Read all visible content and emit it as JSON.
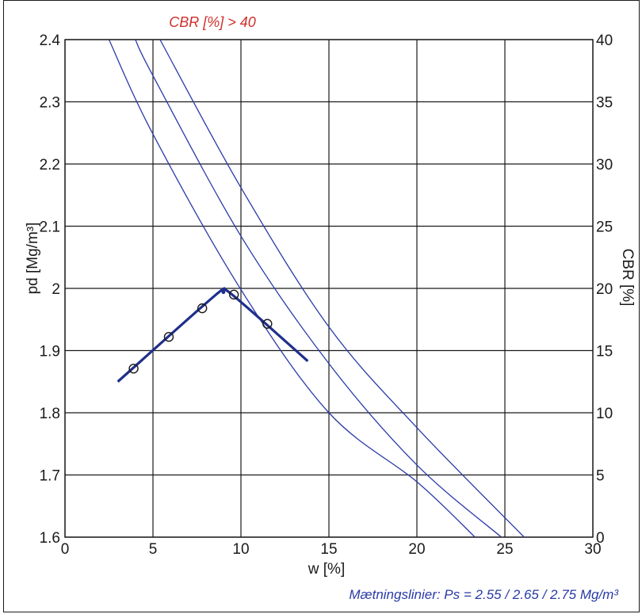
{
  "chart_data": {
    "type": "line",
    "xlabel": "w [%]",
    "ylabel": "pd [Mg/m³]",
    "y2label": "CBR [%]",
    "xlim": [
      0,
      30
    ],
    "ylim": [
      1.6,
      2.4
    ],
    "y2lim": [
      0,
      40
    ],
    "x_ticks": [
      "0",
      "5",
      "10",
      "15",
      "20",
      "25",
      "30"
    ],
    "y_ticks": [
      "1.6",
      "1.7",
      "1.8",
      "1.9",
      "2",
      "2.1",
      "2.2",
      "2.3",
      "2.4"
    ],
    "y2_ticks": [
      "0",
      "5",
      "10",
      "15",
      "20",
      "25",
      "30",
      "35",
      "40"
    ],
    "grid": true,
    "annotations": {
      "cbr_note": "CBR [%] > 40",
      "saturation_note": "Mætningslinier: Ps = 2.55 / 2.65 / 2.75 Mg/m³"
    },
    "measured_points": [
      {
        "x": 3.9,
        "y": 1.871
      },
      {
        "x": 5.9,
        "y": 1.922
      },
      {
        "x": 7.8,
        "y": 1.968
      },
      {
        "x": 9.6,
        "y": 1.99
      },
      {
        "x": 11.5,
        "y": 1.943
      }
    ],
    "fit_curve": {
      "x": [
        3.0,
        8.5,
        9.0,
        9.5,
        13.8
      ],
      "y": [
        1.85,
        1.988,
        1.993,
        1.99,
        1.883
      ]
    },
    "saturation_lines": [
      {
        "ps": 2.55,
        "x": [
          2.5,
          5,
          10,
          15,
          20,
          23.3
        ],
        "y": [
          2.4,
          2.248,
          1.998,
          1.8,
          1.689,
          1.6
        ]
      },
      {
        "ps": 2.65,
        "x": [
          4.0,
          5,
          10,
          15,
          20,
          24.8
        ],
        "y": [
          2.4,
          2.342,
          2.084,
          1.879,
          1.716,
          1.6
        ]
      },
      {
        "ps": 2.75,
        "x": [
          5.4,
          10,
          15,
          20,
          26.1
        ],
        "y": [
          2.4,
          2.162,
          1.938,
          1.776,
          1.6
        ]
      }
    ],
    "colors": {
      "grid": "#1a1a1a",
      "saturation": "#2a3aa8",
      "fit": "#1f2f8a",
      "points": "#1a1a1a",
      "note_red": "#d0302a",
      "note_blue": "#2a3aa8"
    }
  }
}
